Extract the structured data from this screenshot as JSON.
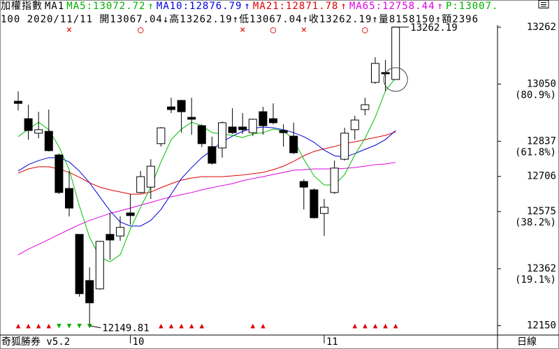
{
  "chart_data": {
    "type": "candlestick",
    "header": [
      {
        "text": "加權指數",
        "color": "#000000"
      },
      {
        "text": "MA1",
        "color": "#000000"
      },
      {
        "text": "MA5:13072.72",
        "color": "#00b000"
      },
      {
        "text": "↑",
        "color": "#00b000"
      },
      {
        "text": "MA10:12876.79",
        "color": "#0000e0"
      },
      {
        "text": "↑",
        "color": "#0000e0"
      },
      {
        "text": "MA21:12871.78",
        "color": "#e00000"
      },
      {
        "text": "↑",
        "color": "#e00000"
      },
      {
        "text": "MA65:12758.44",
        "color": "#e000e0"
      },
      {
        "text": "↑",
        "color": "#e000e0"
      },
      {
        "text": "P:13007.",
        "color": "#00b000"
      }
    ],
    "subheader": "100 2020/11/11 開13067.04↓高13262.19↑低13067.04↑收13262.19↑量8158150↑額2396",
    "footer_left": "奇狐勝券 v5.2",
    "footer_right": "日線",
    "categories": [
      null,
      null,
      null,
      null,
      null,
      null,
      null,
      null,
      null,
      null,
      null,
      "10",
      null,
      null,
      null,
      null,
      null,
      null,
      null,
      null,
      null,
      null,
      null,
      null,
      null,
      null,
      null,
      null,
      null,
      null,
      "11",
      null,
      null,
      null,
      null,
      null,
      null,
      null
    ],
    "open": [
      12986,
      12921,
      12867,
      12874,
      12786,
      12661,
      12490,
      12318,
      12287,
      12490,
      12484,
      12570,
      12646,
      12666,
      12828,
      12965,
      12989,
      12926,
      12895,
      12817,
      12812,
      12890,
      12890,
      12869,
      12947,
      12921,
      12877,
      12856,
      12687,
      12656,
      12568,
      12646,
      12770,
      12880,
      12955,
      13056,
      13093,
      13067.04
    ],
    "high": [
      13023,
      12973,
      12947,
      12955,
      12791,
      12726,
      12490,
      12367,
      12466,
      12570,
      12557,
      12640,
      12726,
      12770,
      12890,
      12999,
      12991,
      12999,
      12900,
      12854,
      12911,
      12960,
      12942,
      12921,
      12965,
      12978,
      12900,
      12906,
      12695,
      12661,
      12622,
      12765,
      12887,
      12932,
      12999,
      13150,
      13140,
      13262.19
    ],
    "low": [
      12952,
      12843,
      12848,
      12799,
      12640,
      12557,
      12258,
      12149.81,
      12284,
      12396,
      12466,
      12526,
      12643,
      12622,
      12817,
      12942,
      12869,
      12861,
      12815,
      12750,
      12776,
      12864,
      12864,
      12856,
      12861,
      12900,
      12817,
      12789,
      12583,
      12549,
      12484,
      12640,
      12765,
      12843,
      12934,
      13051,
      13025,
      13067.04
    ],
    "close": [
      12978,
      12877,
      12880,
      12802,
      12646,
      12588,
      12269,
      12235,
      12464,
      12469,
      12516,
      12560,
      12705,
      12744,
      12887,
      12955,
      12947,
      12919,
      12828,
      12755,
      12906,
      12869,
      12880,
      12919,
      12895,
      12906,
      12869,
      12794,
      12666,
      12552,
      12591,
      12737,
      12867,
      12916,
      12973,
      13127,
      13088,
      13262.19
    ],
    "up_color": "#ffffff",
    "down_color": "#000000",
    "series": [
      {
        "color": "#e000e0",
        "values": [
          12414,
          12435,
          12453,
          12471,
          12490,
          12508,
          12526,
          12542,
          12555,
          12568,
          12578,
          12588,
          12599,
          12609,
          12620,
          12630,
          12638,
          12646,
          12656,
          12664,
          12672,
          12679,
          12690,
          12698,
          12705,
          12713,
          12721,
          12729,
          12731,
          12734,
          12734,
          12734,
          12736,
          12739,
          12744,
          12750,
          12752,
          12758.44
        ]
      },
      {
        "color": "#e00000",
        "values": [
          12718,
          12734,
          12742,
          12742,
          12734,
          12721,
          12703,
          12682,
          12666,
          12656,
          12648,
          12640,
          12640,
          12648,
          12664,
          12679,
          12692,
          12700,
          12705,
          12705,
          12705,
          12708,
          12711,
          12716,
          12721,
          12731,
          12744,
          12762,
          12783,
          12799,
          12809,
          12817,
          12828,
          12835,
          12843,
          12851,
          12859,
          12871.78
        ]
      },
      {
        "color": "#0000e0",
        "values": [
          12726,
          12750,
          12765,
          12776,
          12776,
          12760,
          12726,
          12682,
          12630,
          12578,
          12536,
          12521,
          12521,
          12542,
          12583,
          12640,
          12698,
          12739,
          12776,
          12804,
          12835,
          12856,
          12874,
          12885,
          12890,
          12887,
          12880,
          12869,
          12854,
          12833,
          12804,
          12783,
          12778,
          12791,
          12807,
          12822,
          12843,
          12876.79
        ]
      },
      {
        "color": "#00c000",
        "values": [
          12854,
          12882,
          12908,
          12880,
          12817,
          12731,
          12596,
          12479,
          12406,
          12388,
          12414,
          12510,
          12591,
          12666,
          12760,
          12843,
          12882,
          12908,
          12895,
          12869,
          12864,
          12859,
          12851,
          12864,
          12869,
          12882,
          12877,
          12843,
          12770,
          12708,
          12674,
          12674,
          12713,
          12786,
          12848,
          12926,
          13025,
          13072.72
        ]
      }
    ],
    "top_signals": [
      null,
      null,
      null,
      null,
      null,
      "×",
      null,
      null,
      null,
      null,
      null,
      null,
      "○",
      null,
      null,
      null,
      null,
      null,
      null,
      null,
      null,
      null,
      "×",
      null,
      null,
      "○",
      null,
      null,
      "×",
      null,
      null,
      null,
      null,
      null,
      "○",
      null,
      null,
      null
    ],
    "bottom_signals": [
      "▲",
      "▲",
      "▲",
      "▲",
      "▼",
      "▼",
      "▼",
      "▼",
      null,
      null,
      null,
      null,
      null,
      null,
      "▲",
      "▲",
      "▲",
      "▲",
      "▲",
      null,
      null,
      null,
      null,
      "▲",
      "▲",
      null,
      null,
      null,
      null,
      null,
      null,
      null,
      null,
      "▲",
      "▲",
      "▲",
      "▲",
      "▲"
    ],
    "signal_colors": {
      "×": "#e00000",
      "○": "#e00000",
      "▲": "#e00000",
      "▼": "#00b000"
    },
    "ylim": [
      12115,
      13267
    ],
    "yticks": [
      13262,
      13050,
      12837,
      12706,
      12575,
      12362,
      12150
    ],
    "ytick_notes": [
      null,
      "(80.9%)",
      "(61.8%)",
      null,
      "(38.2%)",
      "(19.1%)",
      null
    ]
  }
}
